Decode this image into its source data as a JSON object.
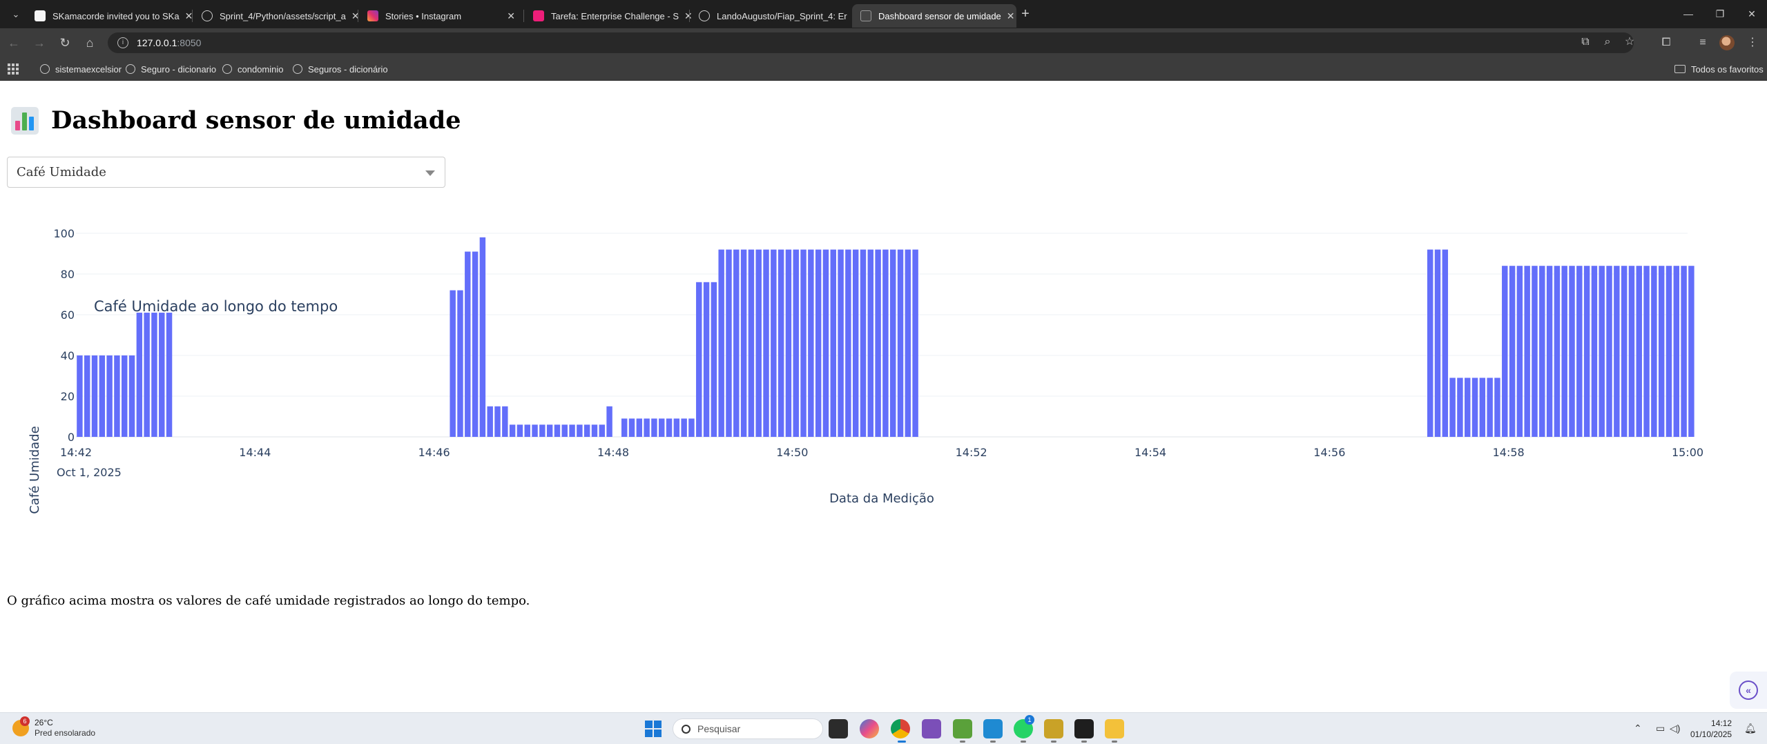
{
  "browser": {
    "tabs": [
      {
        "title": "SKamacorde invited you to SKa",
        "favicon_color": "#ffffff"
      },
      {
        "title": "Sprint_4/Python/assets/script_a",
        "favicon_color": "#ffffff"
      },
      {
        "title": "Stories • Instagram",
        "favicon_color": "#e1306c"
      },
      {
        "title": "Tarefa: Enterprise Challenge - S",
        "favicon_color": "#ed1e79"
      },
      {
        "title": "LandoAugusto/Fiap_Sprint_4: Er",
        "favicon_color": "#ffffff"
      },
      {
        "title": "Dashboard sensor de umidade",
        "favicon_color": "#888888"
      }
    ],
    "url_host": "127.0.0.1",
    "url_port": ":8050",
    "bookmarks": [
      "sistemaexcelsior",
      "Seguro - dicionario",
      "condominio",
      "Seguros - dicionário"
    ],
    "all_favorites_label": "Todos os favoritos"
  },
  "page": {
    "title": "Dashboard sensor de umidade",
    "dropdown_selected": "Café Umidade",
    "caption": "O gráfico acima mostra os valores de café umidade registrados ao longo do tempo."
  },
  "chart_data": {
    "type": "bar",
    "title": "Café Umidade ao longo do tempo",
    "xlabel": "Data da Medição",
    "ylabel": "Café Umidade",
    "date": "Oct 1, 2025",
    "x_range": [
      "14:42",
      "15:00"
    ],
    "ylim": [
      0,
      100
    ],
    "yticks": [
      0,
      20,
      40,
      60,
      80,
      100
    ],
    "xticks": [
      "14:42",
      "14:44",
      "14:46",
      "14:48",
      "14:50",
      "14:52",
      "14:54",
      "14:56",
      "14:58",
      "15:00"
    ],
    "bar_color": "#636efa",
    "grid": true,
    "series": [
      {
        "x": [
          "14:42:00",
          "14:42:05",
          "14:42:10",
          "14:42:15",
          "14:42:20",
          "14:42:25",
          "14:42:30",
          "14:42:35",
          "14:42:40",
          "14:42:45",
          "14:42:50",
          "14:42:55",
          "14:43:00"
        ],
        "values": [
          40,
          40,
          40,
          40,
          40,
          40,
          40,
          40,
          61,
          61,
          61,
          61,
          61
        ]
      },
      {
        "x": [
          "14:46:10",
          "14:46:15",
          "14:46:20",
          "14:46:25",
          "14:46:30",
          "14:46:35",
          "14:46:40",
          "14:46:45",
          "14:46:50",
          "14:46:55",
          "14:47:00",
          "14:47:05",
          "14:47:10",
          "14:47:15",
          "14:47:20",
          "14:47:25",
          "14:47:30",
          "14:47:35",
          "14:47:40",
          "14:47:45",
          "14:47:50",
          "14:47:55"
        ],
        "values": [
          72,
          72,
          91,
          91,
          98,
          15,
          15,
          15,
          6,
          6,
          6,
          6,
          6,
          6,
          6,
          6,
          6,
          6,
          6,
          6,
          6,
          15
        ]
      },
      {
        "x": [
          "14:48:05",
          "14:48:10",
          "14:48:15",
          "14:48:20",
          "14:48:25",
          "14:48:30",
          "14:48:35",
          "14:48:40",
          "14:48:45",
          "14:48:50",
          "14:48:55",
          "14:49:00",
          "14:49:05",
          "14:49:10",
          "14:49:15",
          "14:49:20",
          "14:49:25",
          "14:49:30",
          "14:49:35",
          "14:49:40",
          "14:49:45",
          "14:49:50",
          "14:49:55",
          "14:50:00",
          "14:50:05",
          "14:50:10",
          "14:50:15",
          "14:50:20",
          "14:50:25",
          "14:50:30",
          "14:50:35",
          "14:50:40",
          "14:50:45",
          "14:50:50",
          "14:50:55",
          "14:51:00",
          "14:51:05",
          "14:51:10",
          "14:51:15",
          "14:51:20"
        ],
        "values": [
          9,
          9,
          9,
          9,
          9,
          9,
          9,
          9,
          9,
          9,
          76,
          76,
          76,
          92,
          92,
          92,
          92,
          92,
          92,
          92,
          92,
          92,
          92,
          92,
          92,
          92,
          92,
          92,
          92,
          92,
          92,
          92,
          92,
          92,
          92,
          92,
          92,
          92,
          92,
          92
        ]
      },
      {
        "x": [
          "14:57:05",
          "14:57:10",
          "14:57:15",
          "14:57:20",
          "14:57:25",
          "14:57:30",
          "14:57:35",
          "14:57:40",
          "14:57:45",
          "14:57:50",
          "14:57:55",
          "14:58:00",
          "14:58:05",
          "14:58:10",
          "14:58:15",
          "14:58:20",
          "14:58:25",
          "14:58:30",
          "14:58:35",
          "14:58:40",
          "14:58:45",
          "14:58:50",
          "14:58:55",
          "14:59:00",
          "14:59:05",
          "14:59:10",
          "14:59:15",
          "14:59:20",
          "14:59:25",
          "14:59:30",
          "14:59:35",
          "14:59:40",
          "14:59:45",
          "14:59:50",
          "14:59:55",
          "15:00:00"
        ],
        "values": [
          92,
          92,
          92,
          29,
          29,
          29,
          29,
          29,
          29,
          29,
          84,
          84,
          84,
          84,
          84,
          84,
          84,
          84,
          84,
          84,
          84,
          84,
          84,
          84,
          84,
          84,
          84,
          84,
          84,
          84,
          84,
          84,
          84,
          84,
          84,
          84
        ]
      }
    ]
  },
  "taskbar": {
    "weather_temp": "26°C",
    "weather_desc": "Pred ensolarado",
    "weather_badge": "6",
    "search_placeholder": "Pesquisar",
    "whatsapp_badge": "1",
    "time": "14:12",
    "date": "01/10/2025"
  }
}
